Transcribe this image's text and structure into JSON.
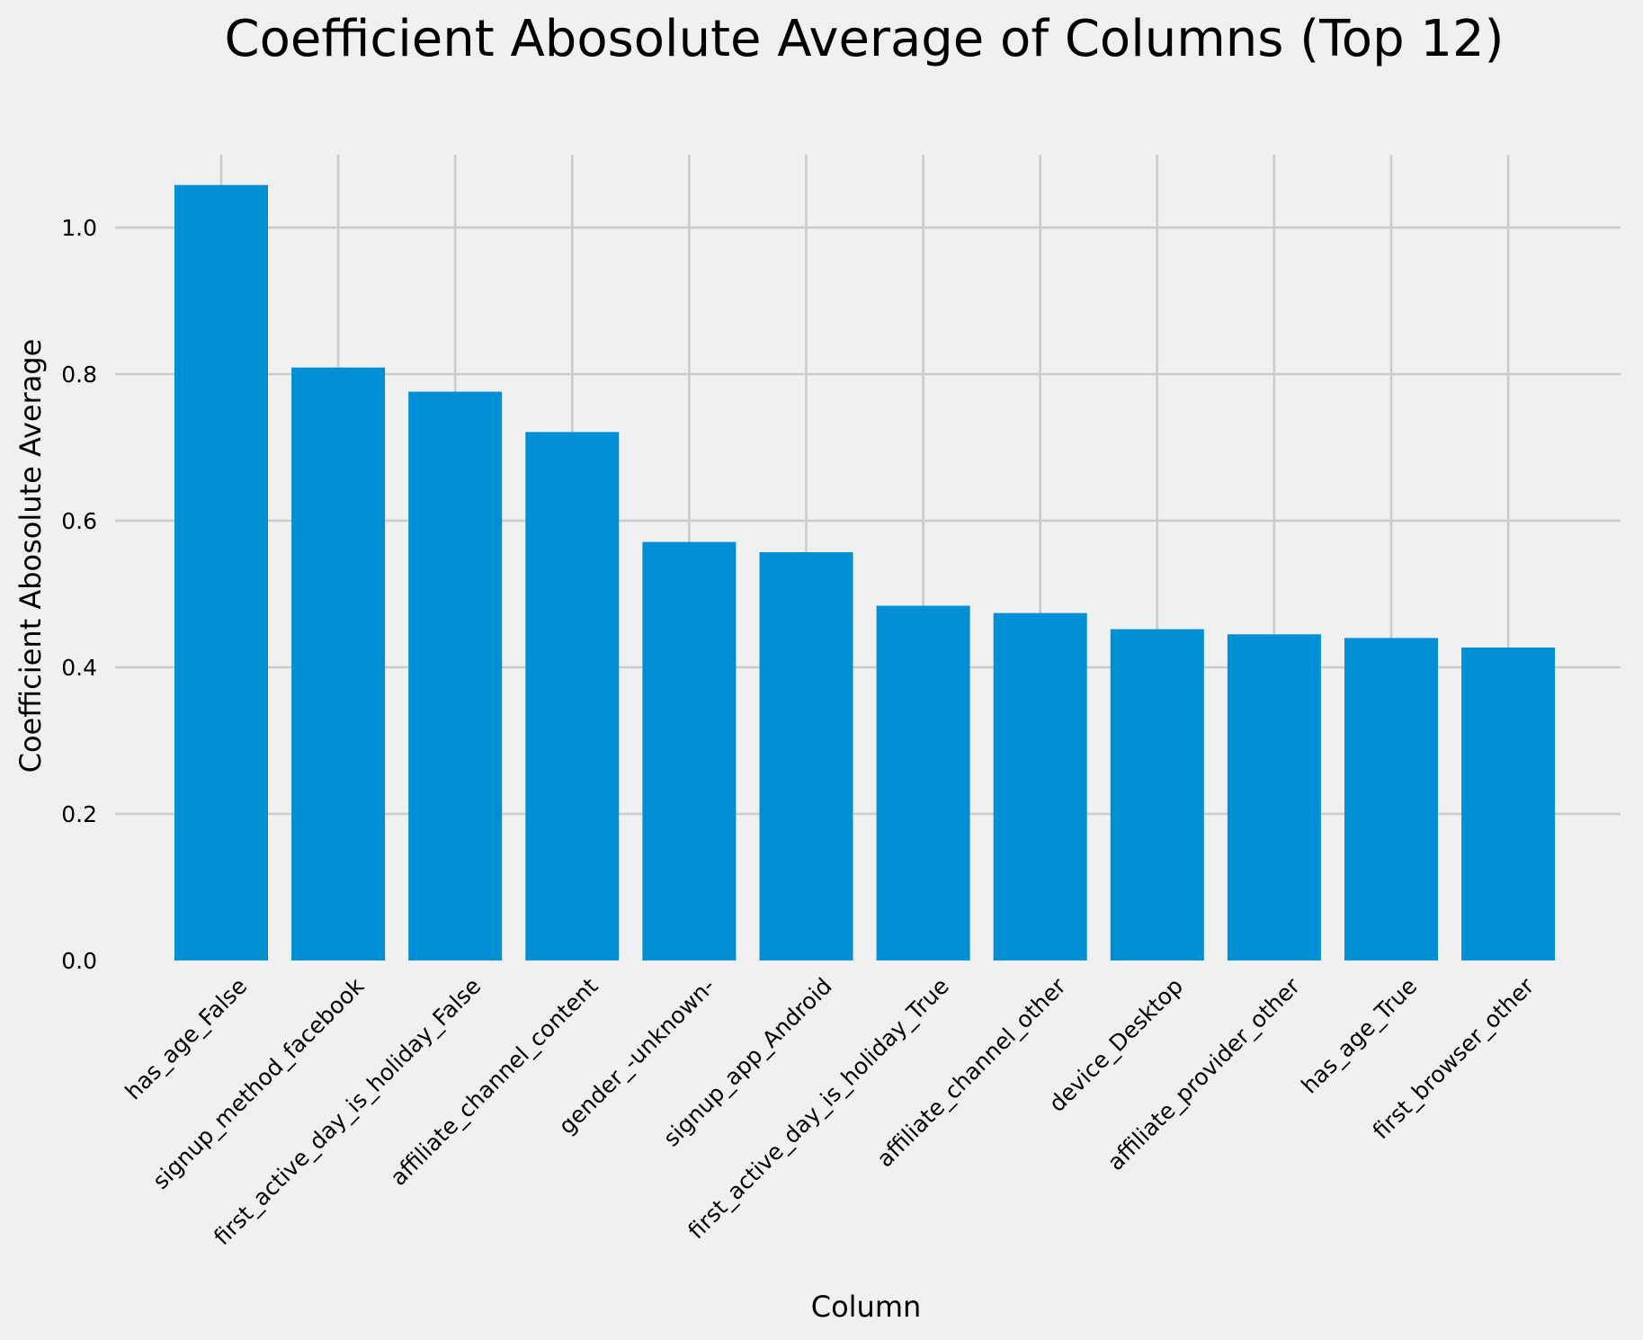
{
  "chart_data": {
    "type": "bar",
    "title": "Coefficient Abosolute Average of Columns (Top 12)",
    "xlabel": "Column",
    "ylabel": "Coefficient Abosolute Average",
    "categories": [
      "has_age_False",
      "signup_method_facebook",
      "first_active_day_is_holiday_False",
      "affiliate_channel_content",
      "gender_-unknown-",
      "signup_app_Android",
      "first_active_day_is_holiday_True",
      "affiliate_channel_other",
      "device_Desktop",
      "affiliate_provider_other",
      "has_age_True",
      "first_browser_other"
    ],
    "values": [
      1.058,
      0.809,
      0.776,
      0.721,
      0.571,
      0.557,
      0.484,
      0.474,
      0.452,
      0.445,
      0.44,
      0.427
    ],
    "yticks": [
      "0.0",
      "0.2",
      "0.4",
      "0.6",
      "0.8",
      "1.0"
    ],
    "ylim": [
      0,
      1.11
    ],
    "grid": true,
    "legend": "none",
    "bar_color": "#008fd5",
    "background_color": "#f0f0f0",
    "grid_color": "#cbcbcb"
  }
}
